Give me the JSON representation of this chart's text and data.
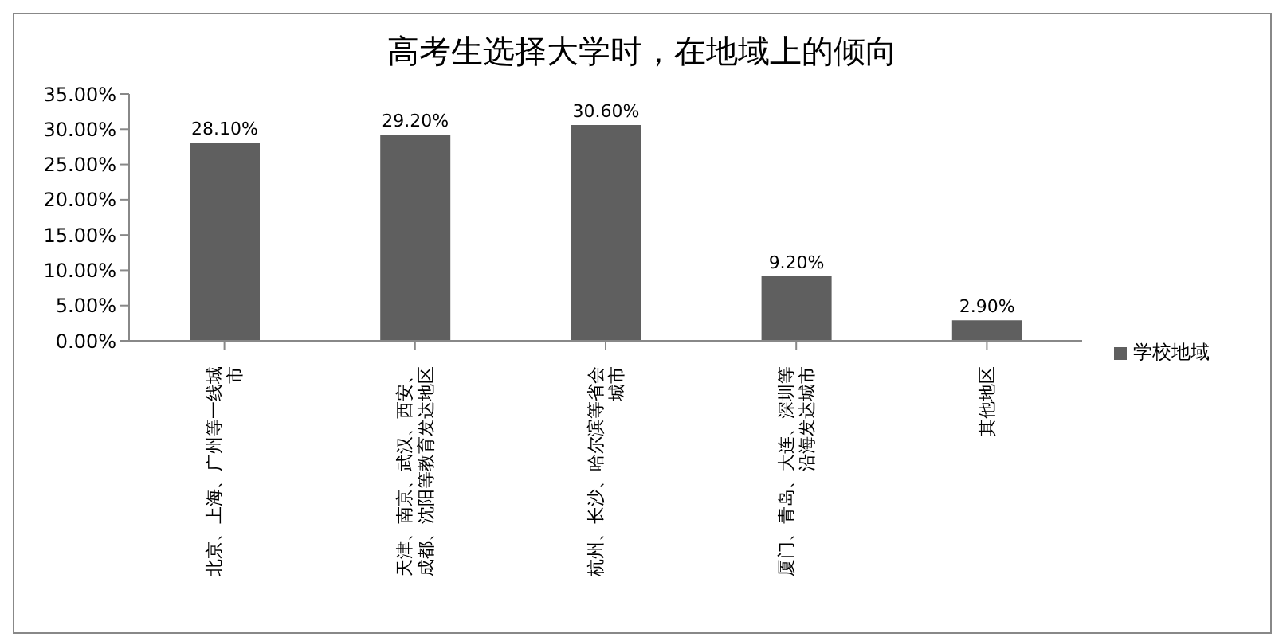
{
  "chart_data": {
    "type": "bar",
    "title": "高考生选择大学时，在地域上的倾向",
    "categories": [
      "北京、上海、广州等一线城市",
      "天津、南京、武汉、西安、成都、沈阳等教育发达地区",
      "杭州、长沙、哈尔滨等省会城市",
      "厦门、青岛、大连、深圳等沿海发达城市",
      "其他地区"
    ],
    "series": [
      {
        "name": "学校地域",
        "color": "#5f5f5f",
        "values": [
          28.1,
          29.2,
          30.6,
          9.2,
          2.9
        ],
        "value_labels": [
          "28.10%",
          "29.20%",
          "30.60%",
          "9.20%",
          "2.90%"
        ]
      }
    ],
    "ylim": [
      0,
      35
    ],
    "yticks": [
      {
        "value": 0,
        "label": "0.00%"
      },
      {
        "value": 5,
        "label": "5.00%"
      },
      {
        "value": 10,
        "label": "10.00%"
      },
      {
        "value": 15,
        "label": "15.00%"
      },
      {
        "value": 20,
        "label": "20.00%"
      },
      {
        "value": 25,
        "label": "25.00%"
      },
      {
        "value": 30,
        "label": "30.00%"
      },
      {
        "value": 35,
        "label": "35.00%"
      }
    ],
    "grid": false,
    "legend": "right"
  }
}
